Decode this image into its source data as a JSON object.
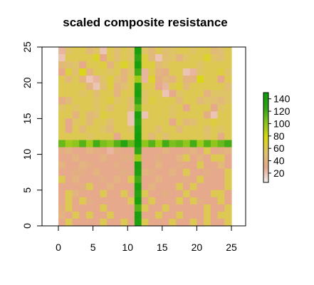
{
  "chart_data": {
    "type": "heatmap",
    "title": "scaled composite resistance",
    "xlabel": "",
    "ylabel": "",
    "x_range": [
      0,
      25
    ],
    "y_range": [
      0,
      25
    ],
    "x_ticks": [
      0,
      5,
      10,
      15,
      20,
      25
    ],
    "y_ticks": [
      0,
      5,
      10,
      15,
      20,
      25
    ],
    "grid": false,
    "grid_size": [
      25,
      25
    ],
    "column_corridor": {
      "x": 11,
      "values": [
        140,
        125,
        140,
        120,
        95,
        135,
        140,
        125,
        110,
        140,
        130,
        140,
        145,
        140,
        125,
        95,
        140,
        135,
        120,
        140,
        130,
        140,
        115,
        140,
        135
      ]
    },
    "row_corridor": {
      "y": 11.5,
      "values": [
        110,
        95,
        100,
        115,
        95,
        120,
        105,
        100,
        115,
        130,
        110,
        145,
        100,
        115,
        95,
        120,
        105,
        110,
        100,
        120,
        95,
        115,
        100,
        110,
        120
      ]
    },
    "background": {
      "rows_top_to_bottom": [
        [
          25,
          55,
          60,
          60,
          45,
          55,
          20,
          60,
          50,
          60,
          55,
          50,
          55,
          45,
          60,
          50,
          55,
          60,
          60,
          55,
          60,
          60,
          45,
          50,
          60
        ],
        [
          20,
          60,
          60,
          60,
          60,
          70,
          30,
          60,
          50,
          60,
          55,
          60,
          65,
          45,
          20,
          50,
          55,
          40,
          55,
          60,
          60,
          70,
          55,
          50,
          60
        ],
        [
          45,
          50,
          55,
          30,
          60,
          60,
          65,
          40,
          60,
          70,
          60,
          60,
          65,
          65,
          45,
          55,
          60,
          60,
          60,
          60,
          55,
          60,
          60,
          60,
          60
        ],
        [
          30,
          65,
          50,
          75,
          40,
          60,
          60,
          55,
          60,
          40,
          55,
          20,
          25,
          60,
          40,
          35,
          60,
          60,
          20,
          25,
          55,
          60,
          60,
          65,
          55
        ],
        [
          60,
          45,
          60,
          40,
          20,
          25,
          55,
          65,
          50,
          40,
          60,
          30,
          25,
          70,
          35,
          45,
          40,
          60,
          40,
          40,
          75,
          60,
          60,
          30,
          60
        ],
        [
          60,
          60,
          60,
          60,
          40,
          20,
          50,
          65,
          40,
          50,
          60,
          60,
          60,
          60,
          30,
          25,
          60,
          65,
          45,
          60,
          60,
          60,
          60,
          60,
          50
        ],
        [
          60,
          60,
          60,
          55,
          60,
          50,
          60,
          60,
          40,
          60,
          60,
          60,
          55,
          60,
          60,
          20,
          30,
          55,
          60,
          60,
          60,
          40,
          55,
          55,
          55
        ],
        [
          35,
          45,
          60,
          60,
          60,
          55,
          60,
          65,
          55,
          60,
          50,
          60,
          55,
          65,
          60,
          60,
          60,
          45,
          60,
          60,
          45,
          55,
          50,
          45,
          55
        ],
        [
          55,
          60,
          55,
          60,
          60,
          55,
          60,
          50,
          60,
          60,
          50,
          60,
          60,
          60,
          60,
          60,
          55,
          60,
          30,
          60,
          60,
          60,
          30,
          55,
          60
        ],
        [
          60,
          60,
          40,
          60,
          45,
          50,
          65,
          60,
          60,
          60,
          20,
          60,
          20,
          60,
          60,
          60,
          55,
          60,
          60,
          60,
          60,
          35,
          20,
          60,
          60
        ],
        [
          60,
          30,
          55,
          60,
          45,
          60,
          60,
          50,
          60,
          60,
          20,
          20,
          60,
          60,
          60,
          60,
          30,
          60,
          45,
          50,
          60,
          60,
          65,
          60,
          60
        ],
        [
          60,
          30,
          60,
          45,
          60,
          60,
          55,
          45,
          60,
          60,
          55,
          60,
          60,
          60,
          50,
          60,
          60,
          45,
          60,
          60,
          60,
          50,
          60,
          55,
          60
        ],
        [
          60,
          60,
          60,
          60,
          55,
          60,
          60,
          60,
          30,
          60,
          60,
          55,
          60,
          45,
          60,
          50,
          60,
          60,
          60,
          60,
          60,
          55,
          60,
          35,
          60
        ],
        [
          30,
          30,
          25,
          35,
          30,
          40,
          30,
          30,
          30,
          35,
          30,
          30,
          30,
          30,
          30,
          30,
          40,
          30,
          30,
          40,
          60,
          30,
          30,
          60,
          60
        ],
        [
          35,
          40,
          30,
          30,
          40,
          35,
          30,
          25,
          35,
          30,
          30,
          30,
          30,
          30,
          30,
          40,
          30,
          30,
          35,
          40,
          30,
          60,
          30,
          35,
          40
        ],
        [
          30,
          30,
          40,
          30,
          30,
          30,
          40,
          30,
          30,
          35,
          35,
          30,
          30,
          30,
          35,
          30,
          30,
          40,
          60,
          30,
          40,
          30,
          60,
          60,
          30
        ],
        [
          40,
          30,
          30,
          40,
          35,
          30,
          30,
          30,
          35,
          30,
          30,
          30,
          30,
          30,
          40,
          30,
          30,
          35,
          30,
          30,
          60,
          30,
          30,
          45,
          30
        ],
        [
          30,
          30,
          35,
          35,
          30,
          40,
          30,
          30,
          30,
          35,
          30,
          30,
          40,
          35,
          30,
          30,
          40,
          30,
          60,
          30,
          30,
          35,
          30,
          30,
          60
        ],
        [
          60,
          30,
          40,
          30,
          30,
          30,
          35,
          30,
          40,
          30,
          60,
          30,
          30,
          30,
          40,
          30,
          30,
          30,
          35,
          30,
          60,
          30,
          30,
          30,
          60
        ],
        [
          30,
          30,
          30,
          35,
          60,
          30,
          30,
          40,
          30,
          30,
          30,
          35,
          30,
          40,
          30,
          30,
          30,
          60,
          30,
          60,
          30,
          30,
          30,
          30,
          60
        ],
        [
          30,
          60,
          40,
          30,
          30,
          30,
          60,
          30,
          30,
          60,
          30,
          30,
          60,
          30,
          30,
          35,
          30,
          30,
          60,
          30,
          30,
          30,
          60,
          60,
          30
        ],
        [
          30,
          60,
          30,
          60,
          35,
          30,
          30,
          30,
          30,
          30,
          60,
          30,
          30,
          60,
          30,
          30,
          30,
          60,
          30,
          60,
          35,
          30,
          30,
          60,
          30
        ],
        [
          35,
          60,
          30,
          30,
          30,
          30,
          60,
          30,
          30,
          30,
          30,
          30,
          60,
          30,
          30,
          60,
          30,
          30,
          30,
          30,
          30,
          60,
          30,
          30,
          60
        ],
        [
          40,
          30,
          60,
          30,
          60,
          30,
          30,
          60,
          30,
          30,
          30,
          30,
          30,
          30,
          60,
          30,
          30,
          60,
          30,
          30,
          30,
          60,
          30,
          60,
          60
        ],
        [
          30,
          60,
          30,
          30,
          30,
          30,
          60,
          30,
          30,
          60,
          30,
          30,
          60,
          30,
          30,
          30,
          60,
          30,
          30,
          60,
          30,
          60,
          30,
          30,
          60
        ]
      ]
    },
    "legend": {
      "position": "right",
      "ticks": [
        20,
        40,
        60,
        80,
        100,
        120,
        140
      ],
      "range": [
        5,
        150
      ],
      "colors": [
        "#f2f2f2",
        "#e6a88c",
        "#dfc26e",
        "#d9d90f",
        "#89c41e",
        "#2ca314",
        "#0e9c0b"
      ]
    }
  }
}
